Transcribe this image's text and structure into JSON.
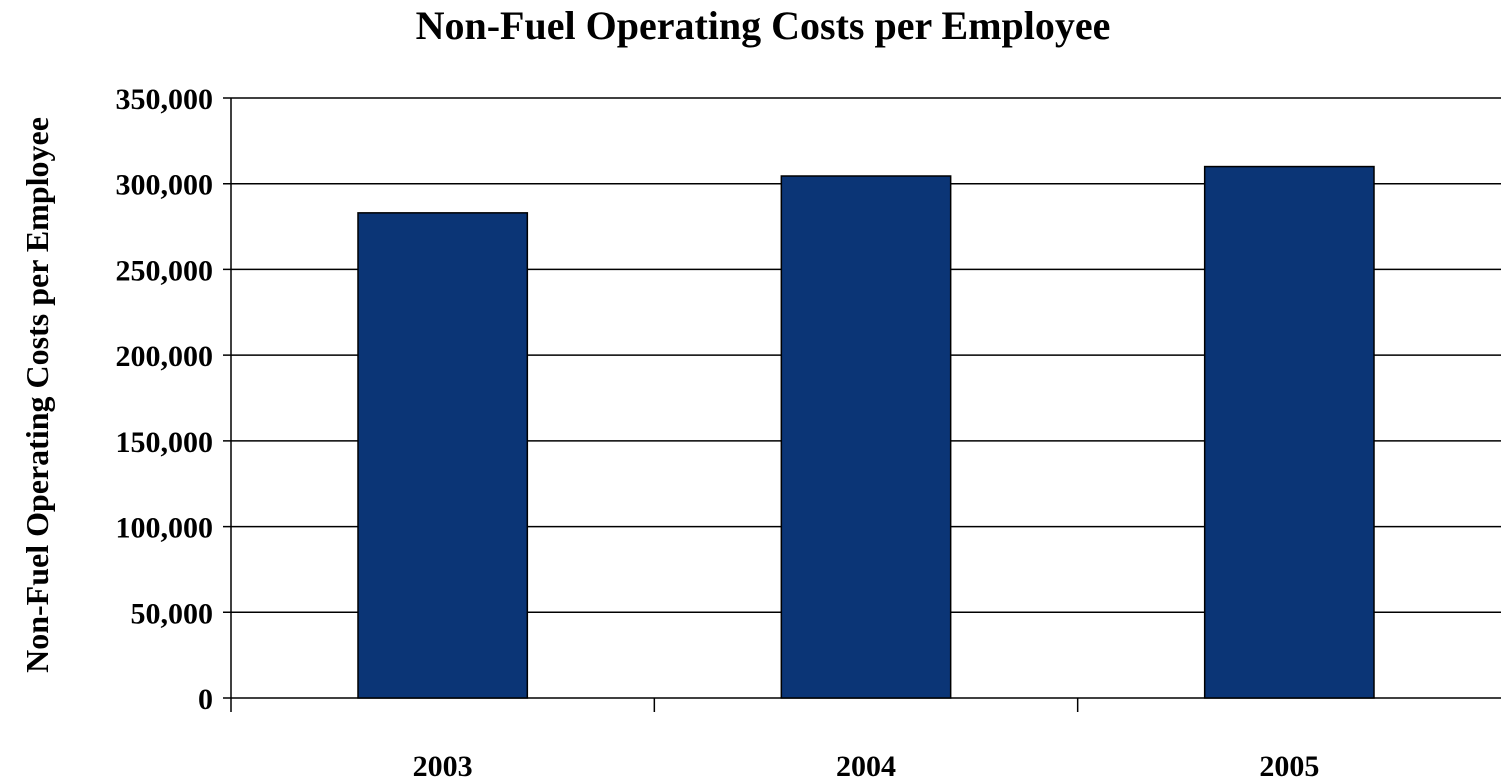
{
  "chart_data": {
    "type": "bar",
    "title": "Non-Fuel Operating Costs per Employee",
    "xlabel": "",
    "ylabel": "Non-Fuel Operating Costs per Employee",
    "categories": [
      "2003",
      "2004",
      "2005"
    ],
    "values": [
      283000,
      304500,
      310000
    ],
    "ylim": [
      0,
      350000
    ],
    "yticks": [
      "0",
      "50,000",
      "100,000",
      "150,000",
      "200,000",
      "250,000",
      "300,000",
      "350,000"
    ],
    "grid": true,
    "legend": "none",
    "colors": {
      "bar": "#0B3576",
      "bar_edge": "#000000",
      "grid": "#000000"
    }
  }
}
